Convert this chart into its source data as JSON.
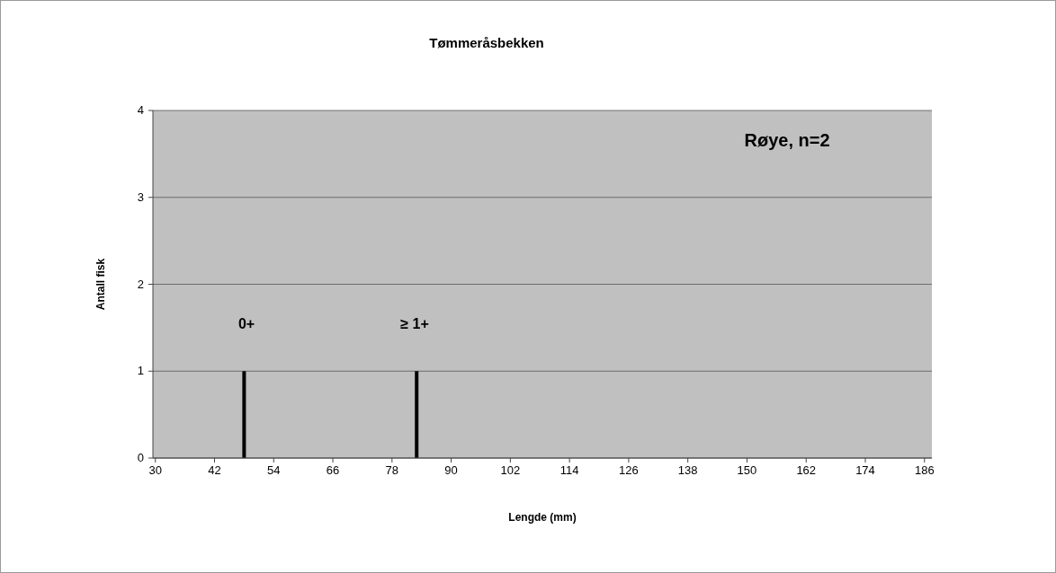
{
  "chart_data": {
    "type": "bar",
    "title": "Tømmeråsbekken",
    "xlabel": "Lengde (mm)",
    "ylabel": "Antall fisk",
    "x": [
      48,
      83
    ],
    "values": [
      1,
      1
    ],
    "color": "#000000",
    "xlim": [
      29.5,
      187.5
    ],
    "xticks": [
      30,
      42,
      54,
      66,
      78,
      90,
      102,
      114,
      126,
      138,
      150,
      162,
      174,
      186
    ],
    "ylim": [
      0,
      4
    ],
    "yticks": [
      0,
      1,
      2,
      3,
      4
    ],
    "grid": "y",
    "annotations": [
      "0+",
      "≥ 1+",
      "Røye, n=2"
    ]
  }
}
